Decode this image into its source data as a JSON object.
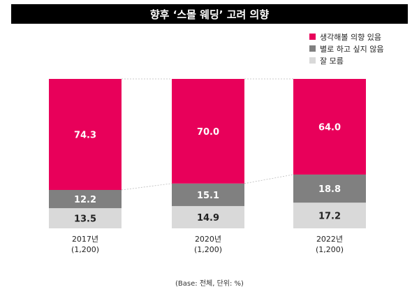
{
  "header": {
    "title": "향후 ‘스몰 웨딩’ 고려 의향"
  },
  "footer": {
    "note": "(Base: 전체, 단위: %)"
  },
  "colors": {
    "s0": "#e8005a",
    "s1": "#808080",
    "s2": "#d9d9d9",
    "guide": "#bbbbbb"
  },
  "chart_data": {
    "type": "bar",
    "stacked": true,
    "title": "향후 ‘스몰 웨딩’ 고려 의향",
    "categories": [
      "2017년",
      "2020년",
      "2022년"
    ],
    "category_sublabels": [
      "(1,200)",
      "(1,200)",
      "(1,200)"
    ],
    "series": [
      {
        "name": "생각해볼 의향 있음",
        "values": [
          74.3,
          70.0,
          64.0
        ],
        "labels": [
          "74.3",
          "70.0",
          "64.0"
        ]
      },
      {
        "name": "별로 하고 싶지 않음",
        "values": [
          12.2,
          15.1,
          18.8
        ],
        "labels": [
          "12.2",
          "15.1",
          "18.8"
        ]
      },
      {
        "name": "잘 모름",
        "values": [
          13.5,
          14.9,
          17.2
        ],
        "labels": [
          "13.5",
          "14.9",
          "17.2"
        ]
      }
    ],
    "ylim": [
      0,
      100
    ],
    "legend_position": "top-right",
    "grid": false
  }
}
